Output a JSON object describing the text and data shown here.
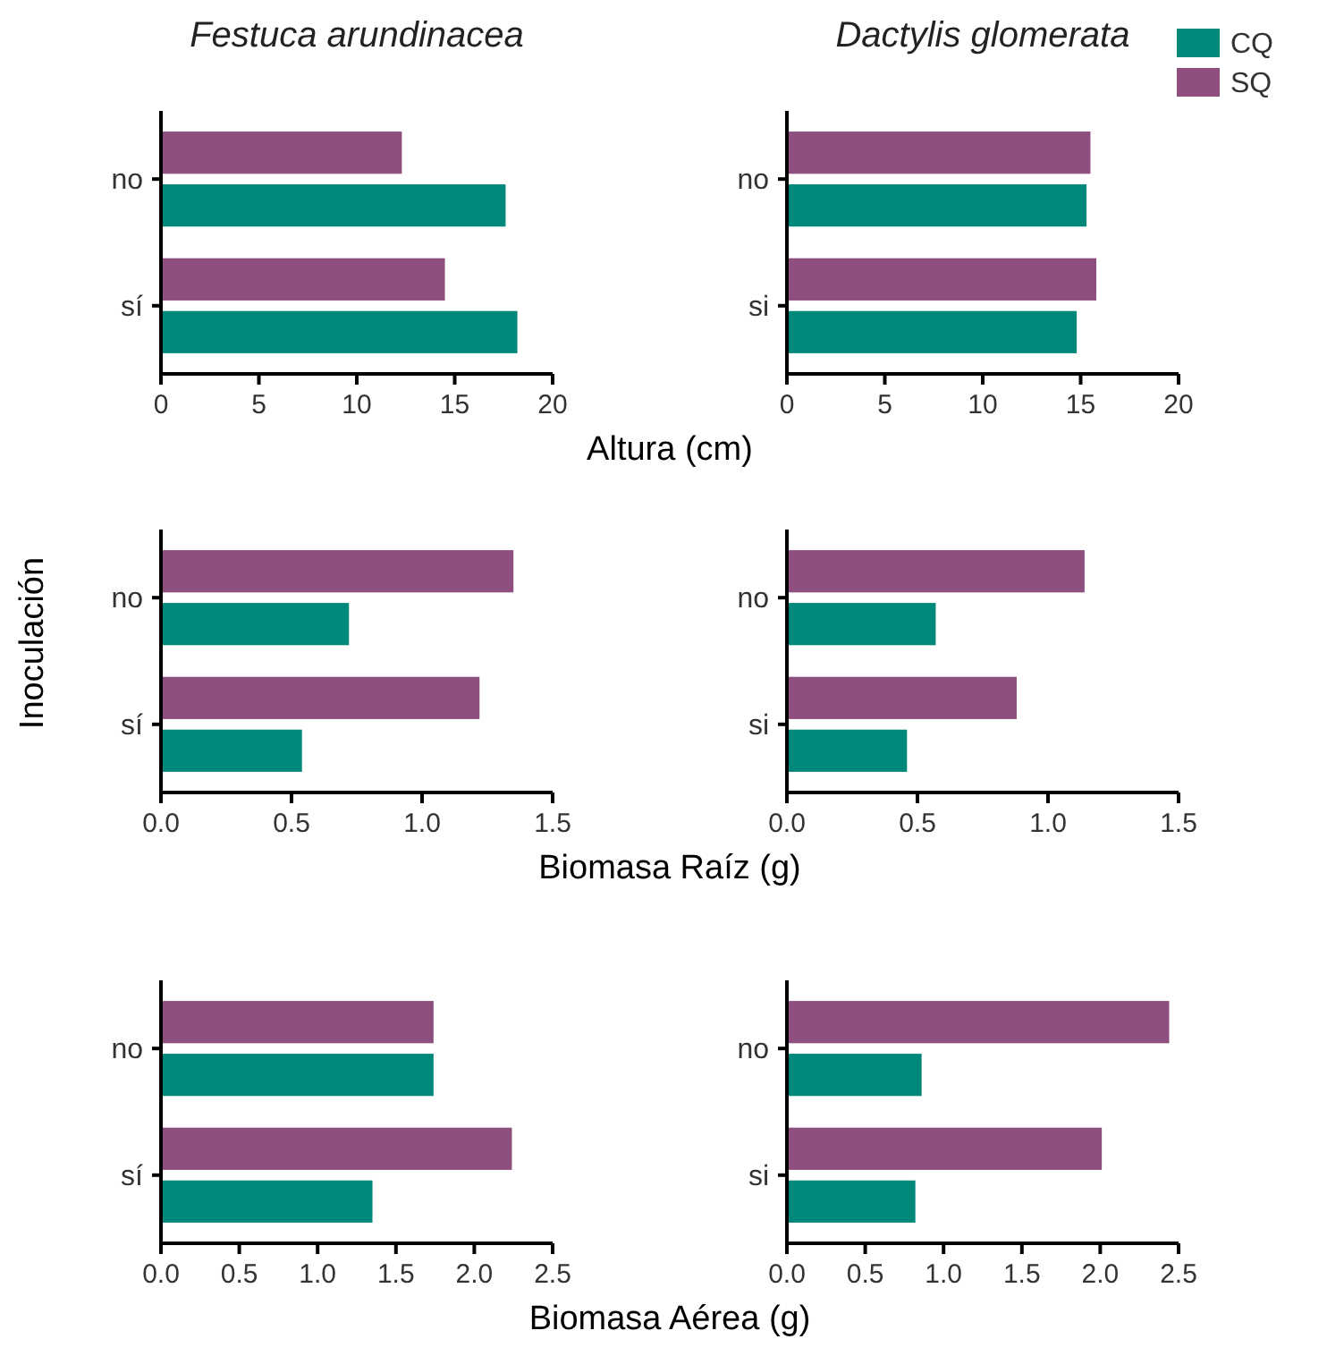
{
  "chart_data": [
    {
      "type": "bar",
      "orientation": "horizontal",
      "title": "Festuca arundinacea",
      "xlabel": "Altura (cm)",
      "categories": [
        "no",
        "sí"
      ],
      "xlim": [
        0,
        20
      ],
      "xticks": [
        0,
        5,
        10,
        15,
        20
      ],
      "legend": false,
      "series": [
        {
          "color": "#00897b",
          "values": [
            17.6,
            18.2
          ]
        },
        {
          "color": "#8e4e7e",
          "values": [
            12.3,
            14.5
          ]
        }
      ]
    },
    {
      "type": "bar",
      "orientation": "horizontal",
      "title": "Dactylis glomerata",
      "categories": [
        "no",
        "si"
      ],
      "xlim": [
        0,
        20
      ],
      "xticks": [
        0,
        5,
        10,
        15,
        20
      ],
      "legend": "top right",
      "series": [
        {
          "name": "CQ",
          "color": "#00897b",
          "values": [
            15.3,
            14.8
          ]
        },
        {
          "name": "SQ",
          "color": "#8e4e7e",
          "values": [
            15.5,
            15.8
          ]
        }
      ]
    },
    {
      "type": "bar",
      "orientation": "horizontal",
      "xlabel": "Biomasa Raíz (g)",
      "ylabel": "Inoculación",
      "categories": [
        "no",
        "sí"
      ],
      "xlim": [
        0,
        1.5
      ],
      "xticks": [
        {
          "value": 0,
          "label": "0.0"
        },
        0.5,
        {
          "value": 1,
          "label": "1.0"
        },
        1.5
      ],
      "legend": false,
      "series": [
        {
          "color": "#00897b",
          "values": [
            0.72,
            0.54
          ]
        },
        {
          "color": "#8e4e7e",
          "values": [
            1.35,
            1.22
          ]
        }
      ]
    },
    {
      "type": "bar",
      "orientation": "horizontal",
      "categories": [
        "no",
        "si"
      ],
      "xlim": [
        0,
        1.5
      ],
      "xticks": [
        {
          "value": 0,
          "label": "0.0"
        },
        0.5,
        {
          "value": 1,
          "label": "1.0"
        },
        1.5
      ],
      "legend": false,
      "series": [
        {
          "color": "#00897b",
          "values": [
            0.57,
            0.46
          ]
        },
        {
          "color": "#8e4e7e",
          "values": [
            1.14,
            0.88
          ]
        }
      ]
    },
    {
      "type": "bar",
      "orientation": "horizontal",
      "xlabel": "Biomasa Aérea (g)",
      "categories": [
        "no",
        "sí"
      ],
      "xlim": [
        0,
        2.5
      ],
      "xticks": [
        {
          "value": 0,
          "label": "0.0"
        },
        0.5,
        {
          "value": 1,
          "label": "1.0"
        },
        1.5,
        {
          "value": 2,
          "label": "2.0"
        },
        2.5
      ],
      "legend": false,
      "series": [
        {
          "color": "#00897b",
          "values": [
            1.74,
            1.35
          ]
        },
        {
          "color": "#8e4e7e",
          "values": [
            1.74,
            2.24
          ]
        }
      ]
    },
    {
      "type": "bar",
      "orientation": "horizontal",
      "categories": [
        "no",
        "si"
      ],
      "xlim": [
        0,
        2.5
      ],
      "xticks": [
        {
          "value": 0,
          "label": "0.0"
        },
        0.5,
        {
          "value": 1,
          "label": "1.0"
        },
        1.5,
        {
          "value": 2,
          "label": "2.0"
        },
        2.5
      ],
      "legend": false,
      "series": [
        {
          "color": "#00897b",
          "values": [
            0.86,
            0.82
          ]
        },
        {
          "color": "#8e4e7e",
          "values": [
            2.44,
            2.01
          ]
        }
      ]
    }
  ]
}
